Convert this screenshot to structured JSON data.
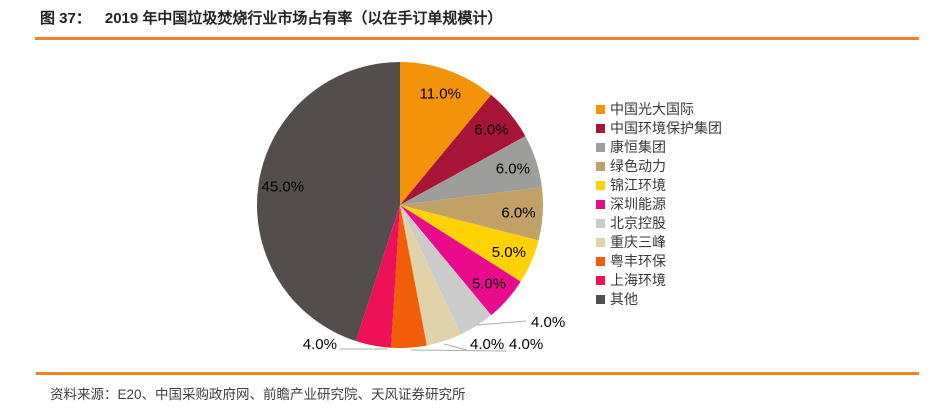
{
  "header": {
    "figure_label": "图 37：",
    "title": "2019 年中国垃圾焚烧行业市场占有率（以在手订单规模计）"
  },
  "footer": {
    "source": "资料来源：E20、中国采购政府网、前瞻产业研究院、天风证券研究所"
  },
  "colors": {
    "accent_rule": "#F0832A",
    "title_text": "#222222",
    "legend_text": "#3A3A3A",
    "source_text": "#3F3F3F",
    "percent_label_text": "#000000",
    "leader_line": "#ACACAC"
  },
  "chart_data": {
    "type": "pie",
    "title": "2019 年中国垃圾焚烧行业市场占有率（以在手订单规模计）",
    "unit": "percent",
    "start_angle_deg": 0,
    "direction": "clockwise",
    "legend_position": "right",
    "categories": [
      "中国光大国际",
      "中国环境保护集团",
      "康恒集团",
      "绿色动力",
      "锦江环境",
      "深圳能源",
      "北京控股",
      "重庆三峰",
      "粤丰环保",
      "上海环境",
      "其他"
    ],
    "values": [
      11.0,
      6.0,
      6.0,
      6.0,
      5.0,
      5.0,
      4.0,
      4.0,
      4.0,
      4.0,
      45.0
    ],
    "labels": [
      "11.0%",
      "6.0%",
      "6.0%",
      "6.0%",
      "5.0%",
      "5.0%",
      "4.0%",
      "4.0%",
      "4.0%",
      "4.0%",
      "45.0%"
    ],
    "colors": [
      "#F39309",
      "#A81438",
      "#9D9D9B",
      "#C1A166",
      "#FFD201",
      "#E90B8B",
      "#CBCBCB",
      "#E2D2A9",
      "#F25D09",
      "#EE1157",
      "#534D4E"
    ]
  }
}
